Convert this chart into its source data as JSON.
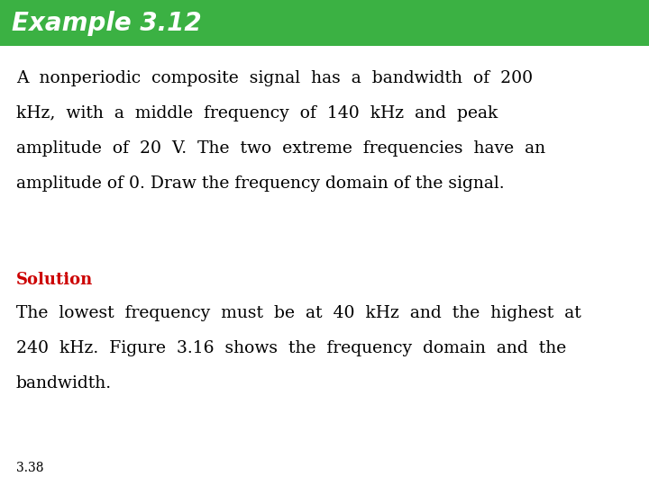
{
  "title": "Example 3.12",
  "title_bg_color": "#3BB143",
  "title_text_color": "#FFFFFF",
  "title_fontsize": 20,
  "title_fontstyle": "italic",
  "title_fontweight": "bold",
  "body_bg_color": "#FFFFFF",
  "paragraph1_lines": [
    "A  nonperiodic  composite  signal  has  a  bandwidth  of  200",
    "kHz,  with  a  middle  frequency  of  140  kHz  and  peak",
    "amplitude  of  20  V.  The  two  extreme  frequencies  have  an",
    "amplitude of 0. Draw the frequency domain of the signal."
  ],
  "solution_label": "Solution",
  "solution_color": "#CC0000",
  "solution_fontsize": 13,
  "paragraph2_lines": [
    "The  lowest  frequency  must  be  at  40  kHz  and  the  highest  at",
    "240  kHz.  Figure  3.16  shows  the  frequency  domain  and  the",
    "bandwidth."
  ],
  "footer": "3.38",
  "body_fontsize": 13.5,
  "body_fontfamily": "DejaVu Serif"
}
